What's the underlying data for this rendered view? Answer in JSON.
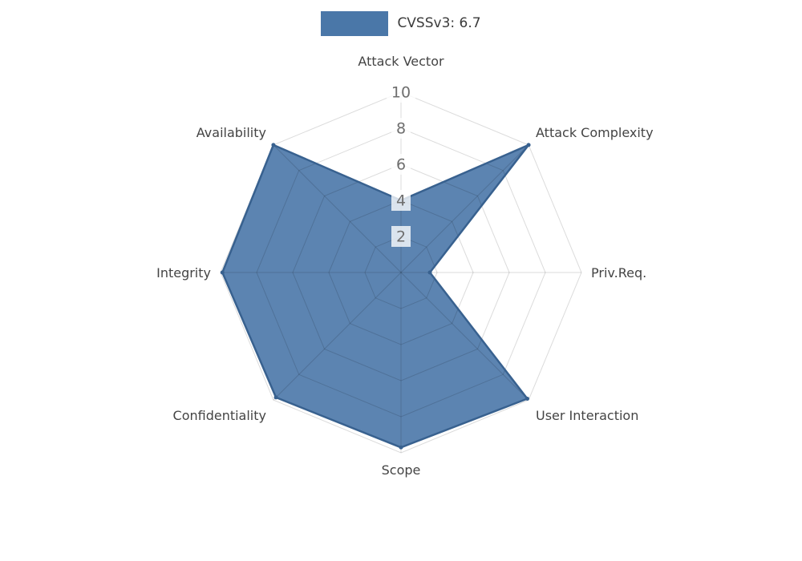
{
  "legend": {
    "label": "CVSSv3: 6.7",
    "swatch_color": "#4a77a8"
  },
  "chart_data": {
    "type": "radar",
    "title": "CVSSv3: 6.7",
    "categories": [
      "Attack Vector",
      "Attack Complexity",
      "Priv.Req.",
      "User Interaction",
      "Scope",
      "Confidentiality",
      "Integrity",
      "Availability"
    ],
    "series": [
      {
        "name": "CVSSv3: 6.7",
        "values": [
          4,
          10,
          1.6,
          9.9,
          9.7,
          9.8,
          9.9,
          10
        ]
      }
    ],
    "rlim": [
      0,
      10
    ],
    "ticks": [
      2,
      4,
      6,
      8,
      10
    ],
    "grid": true,
    "legend_position": "top",
    "fill_color": "#4a77a8",
    "fill_opacity": 0.9,
    "line_color": "#38618f",
    "grid_color": "rgba(0,0,0,0.14)",
    "tick_backdrop": "rgba(255,255,255,0.78)",
    "tick_text_color": "#6e6e6e",
    "axis_label_color": "#444444"
  }
}
